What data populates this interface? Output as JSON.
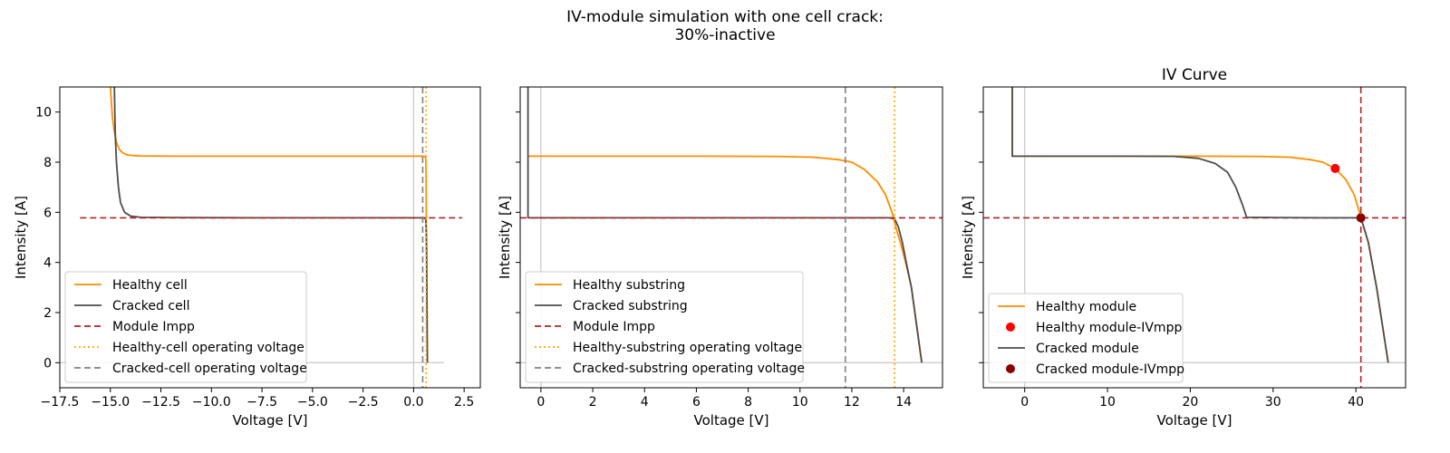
{
  "figure": {
    "suptitle_lines": [
      "IV-module simulation with one cell crack:",
      "30%-inactive"
    ]
  },
  "colors": {
    "healthy": "#ff8c00",
    "cracked": "#4d4d4d",
    "impp": "#b22222",
    "healthy_op": "#ffa500",
    "cracked_op": "#808080",
    "healthy_mpp": "#ff0000",
    "cracked_mpp": "#8b0000",
    "axis_ref": "#cccccc"
  },
  "chart_data": [
    {
      "type": "line",
      "title": "",
      "xlabel": "Voltage [V]",
      "ylabel": "Intensity [A]",
      "xlim": [
        -17.5,
        3.3
      ],
      "ylim": [
        -1,
        11
      ],
      "xticks": [
        -17.5,
        -15.0,
        -12.5,
        -10.0,
        -7.5,
        -5.0,
        -2.5,
        0.0,
        2.5
      ],
      "xtick_labels": [
        "−17.5",
        "−15.0",
        "−12.5",
        "−10.0",
        "−7.5",
        "−5.0",
        "−2.5",
        "0.0",
        "2.5"
      ],
      "yticks": [
        0,
        2,
        4,
        6,
        8,
        10
      ],
      "ytick_labels": [
        "0",
        "2",
        "4",
        "6",
        "8",
        "10"
      ],
      "legend_position": "lower-left",
      "series": [
        {
          "name": "Healthy cell",
          "role": "healthy",
          "style": "solid",
          "x": [
            -15.0,
            -14.95,
            -14.9,
            -14.8,
            -14.7,
            -14.55,
            -14.4,
            -14.2,
            -14.0,
            -13.5,
            -12.0,
            -8.0,
            -4.0,
            -1.0,
            0.0,
            0.4,
            0.55,
            0.6,
            0.62,
            0.63,
            0.635
          ],
          "y": [
            11.0,
            10.4,
            9.8,
            9.2,
            8.8,
            8.5,
            8.38,
            8.3,
            8.27,
            8.25,
            8.24,
            8.24,
            8.24,
            8.24,
            8.24,
            8.24,
            8.23,
            8.15,
            7.5,
            6.0,
            4.5
          ]
        },
        {
          "name": "Cracked cell",
          "role": "cracked",
          "style": "solid",
          "x": [
            -14.8,
            -14.78,
            -14.75,
            -14.7,
            -14.6,
            -14.5,
            -14.3,
            -14.0,
            -13.5,
            -12.0,
            -8.0,
            -4.0,
            -1.0,
            0.0,
            0.4,
            0.55,
            0.6,
            0.62,
            0.64,
            0.66,
            0.68
          ],
          "y": [
            11.0,
            10.0,
            9.0,
            8.0,
            7.0,
            6.4,
            6.0,
            5.85,
            5.8,
            5.79,
            5.78,
            5.78,
            5.78,
            5.78,
            5.78,
            5.77,
            5.7,
            5.4,
            4.5,
            2.5,
            0.0
          ]
        },
        {
          "name": "Module Impp",
          "role": "impp",
          "style": "dashed",
          "kind": "hline",
          "y": 5.78,
          "x_range": [
            -16.5,
            2.4
          ]
        },
        {
          "name": "Healthy-cell operating voltage",
          "role": "healthy_op",
          "style": "dotted",
          "kind": "vline",
          "x": 0.62
        },
        {
          "name": "Cracked-cell operating voltage",
          "role": "cracked_op",
          "style": "dashed",
          "kind": "vline",
          "x": 0.45
        }
      ],
      "reference_lines": [
        {
          "kind": "vline",
          "x": 0.0
        },
        {
          "kind": "hline",
          "y": 0.0,
          "x_range": [
            -17.5,
            1.5
          ]
        }
      ]
    },
    {
      "type": "line",
      "title": "",
      "xlabel": "Voltage [V]",
      "ylabel": "Intensity [A]",
      "xlim": [
        -0.8,
        15.5
      ],
      "ylim": [
        -1,
        11
      ],
      "xticks": [
        0,
        2,
        4,
        6,
        8,
        10,
        12,
        14
      ],
      "xtick_labels": [
        "0",
        "2",
        "4",
        "6",
        "8",
        "10",
        "12",
        "14"
      ],
      "yticks": [
        0,
        2,
        4,
        6,
        8,
        10
      ],
      "ytick_labels": [
        "",
        "",
        "",
        "",
        "",
        ""
      ],
      "legend_position": "lower-left",
      "series": [
        {
          "name": "Healthy substring",
          "role": "healthy",
          "style": "solid",
          "x": [
            -0.5,
            2.0,
            6.0,
            9.0,
            10.5,
            11.5,
            12.0,
            12.5,
            13.0,
            13.3,
            13.55,
            13.7,
            13.9,
            14.1,
            14.3,
            14.5,
            14.7
          ],
          "y": [
            8.24,
            8.24,
            8.24,
            8.23,
            8.2,
            8.1,
            8.0,
            7.7,
            7.2,
            6.7,
            6.0,
            5.4,
            4.7,
            3.9,
            3.0,
            1.5,
            0.0
          ]
        },
        {
          "name": "Cracked substring",
          "role": "cracked",
          "style": "solid",
          "x": [
            -0.5,
            -0.5,
            2.0,
            6.0,
            10.0,
            12.5,
            13.4,
            13.65,
            13.8,
            13.95,
            14.1,
            14.3,
            14.5,
            14.7
          ],
          "y": [
            11.0,
            5.78,
            5.78,
            5.78,
            5.78,
            5.78,
            5.78,
            5.75,
            5.4,
            4.8,
            4.0,
            3.0,
            1.5,
            0.0
          ]
        },
        {
          "name": "Module Impp",
          "role": "impp",
          "style": "dashed",
          "kind": "hline",
          "y": 5.78
        },
        {
          "name": "Healthy-substring operating voltage",
          "role": "healthy_op",
          "style": "dotted",
          "kind": "vline",
          "x": 13.65
        },
        {
          "name": "Cracked-substring operating voltage",
          "role": "cracked_op",
          "style": "dashed",
          "kind": "vline",
          "x": 11.75
        }
      ],
      "reference_lines": [
        {
          "kind": "vline",
          "x": 0.0
        },
        {
          "kind": "hline",
          "y": 0.0
        }
      ]
    },
    {
      "type": "line",
      "title": "IV Curve",
      "xlabel": "Voltage [V]",
      "ylabel": "Intensity [A]",
      "xlim": [
        -5,
        46
      ],
      "ylim": [
        -1,
        11
      ],
      "xticks": [
        0,
        10,
        20,
        30,
        40
      ],
      "xtick_labels": [
        "0",
        "10",
        "20",
        "30",
        "40"
      ],
      "yticks": [
        0,
        2,
        4,
        6,
        8,
        10
      ],
      "ytick_labels": [
        "",
        "",
        "",
        "",
        "",
        ""
      ],
      "legend_position": "lower-left",
      "series": [
        {
          "name": "Healthy module",
          "role": "healthy",
          "style": "solid",
          "x": [
            -1.5,
            -1.5,
            10.0,
            20.0,
            28.0,
            32.0,
            34.5,
            36.0,
            37.5,
            38.8,
            39.8,
            40.6,
            41.5,
            42.5,
            43.2,
            43.9
          ],
          "y": [
            11.0,
            8.24,
            8.24,
            8.24,
            8.23,
            8.2,
            8.1,
            8.0,
            7.75,
            7.3,
            6.7,
            5.8,
            4.8,
            3.0,
            1.5,
            0.0
          ]
        },
        {
          "name": "Healthy module-IVmpp",
          "role": "healthy_mpp",
          "kind": "marker",
          "x": 37.5,
          "y": 7.75
        },
        {
          "name": "Cracked module",
          "role": "cracked",
          "style": "solid",
          "x": [
            -1.5,
            -1.5,
            5.0,
            12.0,
            18.0,
            21.0,
            23.0,
            24.5,
            25.5,
            26.3,
            26.8,
            30.0,
            36.0,
            40.6,
            41.5,
            42.5,
            43.2,
            43.9
          ],
          "y": [
            11.0,
            8.24,
            8.24,
            8.24,
            8.23,
            8.15,
            7.95,
            7.6,
            7.0,
            6.3,
            5.8,
            5.79,
            5.78,
            5.78,
            4.8,
            3.0,
            1.5,
            0.0
          ]
        },
        {
          "name": "Cracked module-IVmpp",
          "role": "cracked_mpp",
          "kind": "marker",
          "x": 40.6,
          "y": 5.78
        }
      ],
      "reference_lines": [
        {
          "kind": "vline",
          "x": 0.0
        },
        {
          "kind": "hline",
          "y": 0.0
        },
        {
          "kind": "hline",
          "y": 5.78,
          "role": "impp",
          "style": "dashed"
        },
        {
          "kind": "vline",
          "x": 40.6,
          "role": "impp",
          "style": "dashed"
        }
      ]
    }
  ]
}
